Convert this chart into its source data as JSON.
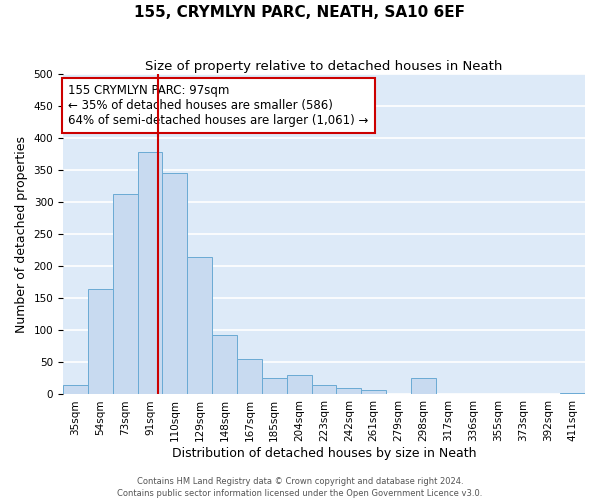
{
  "title": "155, CRYMLYN PARC, NEATH, SA10 6EF",
  "subtitle": "Size of property relative to detached houses in Neath",
  "xlabel": "Distribution of detached houses by size in Neath",
  "ylabel": "Number of detached properties",
  "bar_color": "#c8daf0",
  "bar_edge_color": "#6aaad4",
  "background_color": "#ddeaf8",
  "grid_color": "#ffffff",
  "bin_labels": [
    "35sqm",
    "54sqm",
    "73sqm",
    "91sqm",
    "110sqm",
    "129sqm",
    "148sqm",
    "167sqm",
    "185sqm",
    "204sqm",
    "223sqm",
    "242sqm",
    "261sqm",
    "279sqm",
    "298sqm",
    "317sqm",
    "336sqm",
    "355sqm",
    "373sqm",
    "392sqm",
    "411sqm"
  ],
  "bar_heights": [
    15,
    165,
    313,
    378,
    345,
    215,
    93,
    55,
    25,
    30,
    15,
    10,
    7,
    0,
    25,
    0,
    0,
    0,
    0,
    0,
    3
  ],
  "property_size_bin_index": 3,
  "vline_color": "#cc0000",
  "annotation_text": "155 CRYMLYN PARC: 97sqm\n← 35% of detached houses are smaller (586)\n64% of semi-detached houses are larger (1,061) →",
  "annotation_box_color": "#ffffff",
  "annotation_box_edge_color": "#cc0000",
  "ylim": [
    0,
    500
  ],
  "yticks": [
    0,
    50,
    100,
    150,
    200,
    250,
    300,
    350,
    400,
    450,
    500
  ],
  "footer_line1": "Contains HM Land Registry data © Crown copyright and database right 2024.",
  "footer_line2": "Contains public sector information licensed under the Open Government Licence v3.0.",
  "title_fontsize": 11,
  "subtitle_fontsize": 9.5,
  "xlabel_fontsize": 9,
  "ylabel_fontsize": 9,
  "tick_fontsize": 7.5,
  "annotation_fontsize": 8.5,
  "footer_fontsize": 6
}
